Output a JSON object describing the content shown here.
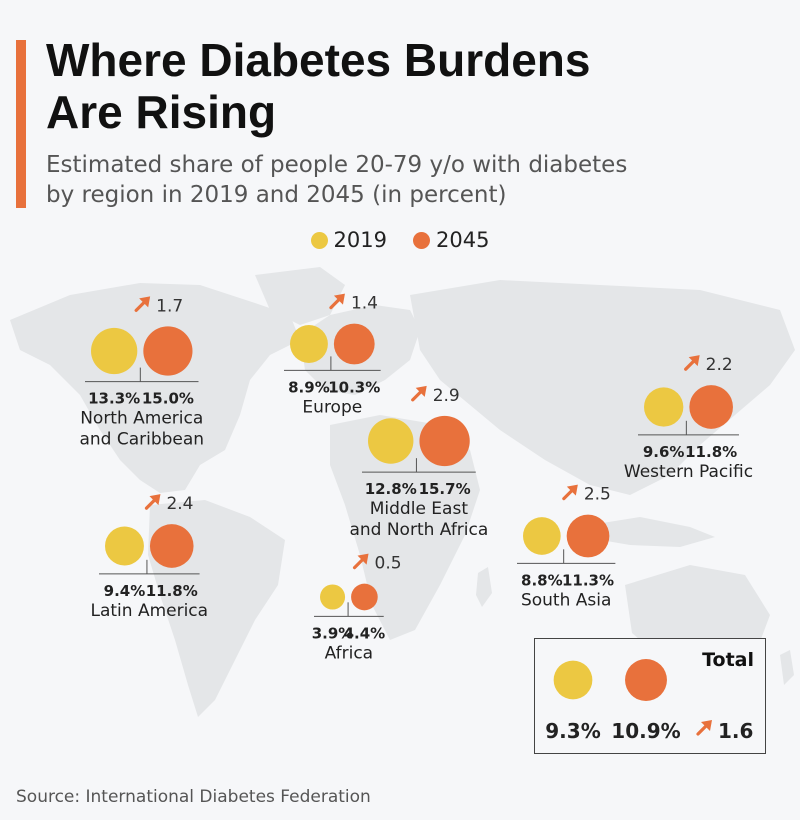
{
  "title_line1": "Where Diabetes Burdens",
  "title_line2": "Are Rising",
  "subtitle_line1": "Estimated share of people 20-79 y/o with diabetes",
  "subtitle_line2": "by region in 2019 and 2045 (in percent)",
  "legend": [
    {
      "label": "2019",
      "color": "#ecc842"
    },
    {
      "label": "2045",
      "color": "#e8713c"
    }
  ],
  "colors": {
    "y2019": "#ecc842",
    "y2045": "#e8713c",
    "arrow": "#e8713c",
    "accent": "#e8713c",
    "map": "#e4e6e8"
  },
  "source": "Source: International Diabetes Federation",
  "chart_data": {
    "type": "bubble",
    "title": "Where Diabetes Burdens Are Rising",
    "subtitle": "Estimated share of people 20-79 y/o with diabetes by region in 2019 and 2045 (in percent)",
    "unit": "%",
    "series_names": [
      "2019",
      "2045"
    ],
    "regions": [
      {
        "name_lines": [
          "North America",
          "and Caribbean"
        ],
        "v2019": 13.3,
        "v2045": 15.0,
        "v2019_label": "13.3%",
        "v2045_label": "15.0%",
        "change_label": "1.7"
      },
      {
        "name_lines": [
          "Europe"
        ],
        "v2019": 8.9,
        "v2045": 10.3,
        "v2019_label": "8.9%",
        "v2045_label": "10.3%",
        "change_label": "1.4"
      },
      {
        "name_lines": [
          "Middle East",
          "and North Africa"
        ],
        "v2019": 12.8,
        "v2045": 15.7,
        "v2019_label": "12.8%",
        "v2045_label": "15.7%",
        "change_label": "2.9"
      },
      {
        "name_lines": [
          "Western Pacific"
        ],
        "v2019": 9.6,
        "v2045": 11.8,
        "v2019_label": "9.6%",
        "v2045_label": "11.8%",
        "change_label": "2.2"
      },
      {
        "name_lines": [
          "Latin America"
        ],
        "v2019": 9.4,
        "v2045": 11.8,
        "v2019_label": "9.4%",
        "v2045_label": "11.8%",
        "change_label": "2.4"
      },
      {
        "name_lines": [
          "Africa"
        ],
        "v2019": 3.9,
        "v2045": 4.4,
        "v2019_label": "3.9%",
        "v2045_label": "4.4%",
        "change_label": "0.5"
      },
      {
        "name_lines": [
          "South Asia"
        ],
        "v2019": 8.8,
        "v2045": 11.3,
        "v2019_label": "8.8%",
        "v2045_label": "11.3%",
        "change_label": "2.5"
      }
    ],
    "total": {
      "label": "Total",
      "v2019": 9.3,
      "v2045": 10.9,
      "v2019_label": "9.3%",
      "v2045_label": "10.9%",
      "change_label": "1.6"
    }
  }
}
